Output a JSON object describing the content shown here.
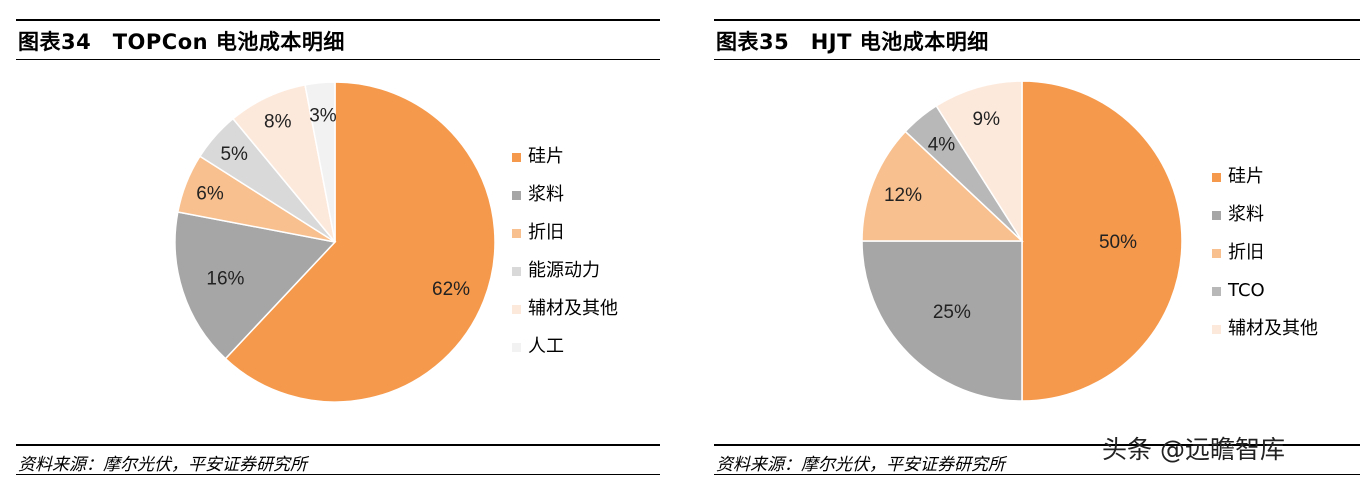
{
  "charts": [
    {
      "title": "图表34　TOPCon 电池成本明细",
      "source": "资料来源：摩尔光伏，平安证券研究所",
      "legend": [
        "硅片",
        "浆料",
        "折旧",
        "能源动力",
        "辅材及其他",
        "人工"
      ],
      "colors": [
        "#f5994c",
        "#a6a6a6",
        "#f8c08f",
        "#d9d9d9",
        "#fde9dc",
        "#f2f2f2"
      ]
    },
    {
      "title": "图表35　HJT 电池成本明细",
      "source": "资料来源：摩尔光伏，平安证券研究所",
      "legend": [
        "硅片",
        "浆料",
        "折旧",
        "TCO",
        "辅材及其他"
      ],
      "colors": [
        "#f5994c",
        "#a6a6a6",
        "#f8c08f",
        "#b8b8b8",
        "#fde9dc"
      ]
    }
  ],
  "chart_data": [
    {
      "type": "pie",
      "title": "TOPCon 电池成本明细",
      "categories": [
        "硅片",
        "浆料",
        "折旧",
        "能源动力",
        "辅材及其他",
        "人工"
      ],
      "values": [
        62,
        16,
        6,
        5,
        8,
        3
      ],
      "labels": [
        "62%",
        "16%",
        "6%",
        "5%",
        "8%",
        "3%"
      ],
      "legend_position": "right"
    },
    {
      "type": "pie",
      "title": "HJT 电池成本明细",
      "categories": [
        "硅片",
        "浆料",
        "折旧",
        "TCO",
        "辅材及其他"
      ],
      "values": [
        50,
        25,
        12,
        4,
        9
      ],
      "labels": [
        "50%",
        "25%",
        "12%",
        "4%",
        "9%"
      ],
      "legend_position": "right"
    }
  ],
  "watermark": "头条 @远瞻智库"
}
